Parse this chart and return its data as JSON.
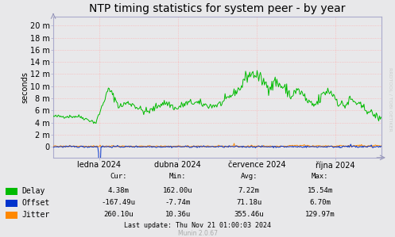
{
  "title": "NTP timing statistics for system peer - by year",
  "ylabel": "seconds",
  "bg_color": "#e8e8ea",
  "plot_bg_color": "#e8e8ea",
  "grid_color": "#ffaaaa",
  "ytick_labels": [
    "0",
    "2 m",
    "4 m",
    "6 m",
    "8 m",
    "10 m",
    "12 m",
    "14 m",
    "16 m",
    "18 m",
    "20 m"
  ],
  "ytick_values": [
    0.0,
    0.002,
    0.004,
    0.006,
    0.008,
    0.01,
    0.012,
    0.014,
    0.016,
    0.018,
    0.02
  ],
  "ylim": [
    -0.0018,
    0.0215
  ],
  "xticklabels": [
    "ledna 2024",
    "dubna 2024",
    "července 2024",
    "října 2024"
  ],
  "x_tick_positions": [
    0.14,
    0.38,
    0.62,
    0.86
  ],
  "delay_color": "#00bb00",
  "offset_color": "#0033cc",
  "jitter_color": "#ff8800",
  "legend_items": [
    "Delay",
    "Offset",
    "Jitter"
  ],
  "legend_colors": [
    "#00bb00",
    "#0033cc",
    "#ff8800"
  ],
  "stats_headers": [
    "Cur:",
    "Min:",
    "Avg:",
    "Max:"
  ],
  "stats_delay": [
    "4.38m",
    "162.00u",
    "7.22m",
    "15.54m"
  ],
  "stats_offset": [
    "-167.49u",
    "-7.74m",
    "71.18u",
    "6.70m"
  ],
  "stats_jitter": [
    "260.10u",
    "10.36u",
    "355.46u",
    "129.97m"
  ],
  "last_update": "Last update: Thu Nov 21 01:00:03 2024",
  "munin_version": "Munin 2.0.67",
  "watermark": "RRDTOOL / TOBI OETIKER",
  "title_fontsize": 10,
  "axis_fontsize": 7,
  "legend_fontsize": 7,
  "stats_fontsize": 6.5
}
